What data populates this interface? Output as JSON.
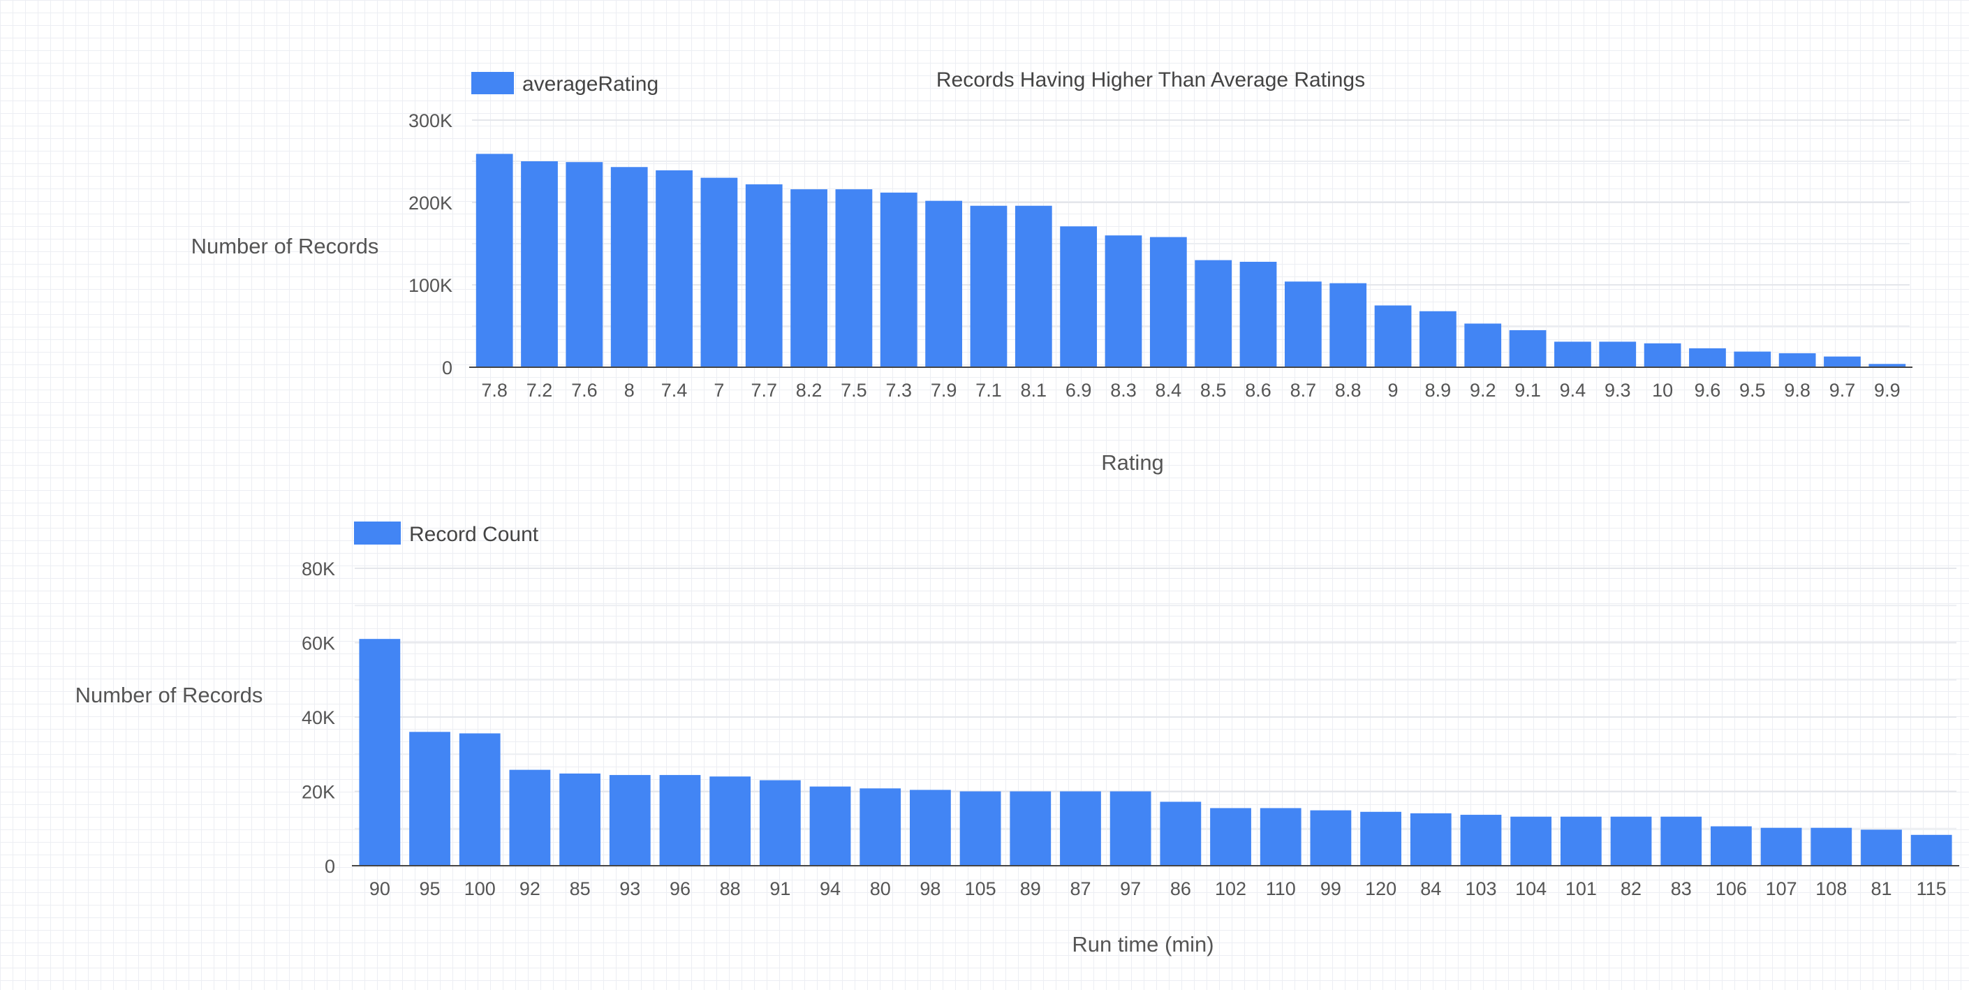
{
  "chart_data": [
    {
      "type": "bar",
      "title": "Records Having Higher Than Average Ratings",
      "xlabel": "Rating",
      "ylabel": "Number of Records",
      "legend": [
        "averageRating"
      ],
      "legend_position": "top-left",
      "grid": true,
      "ylim": [
        0,
        300000
      ],
      "yticks": [
        0,
        100000,
        200000,
        300000
      ],
      "ytick_labels": [
        "0",
        "100K",
        "200K",
        "300K"
      ],
      "categories": [
        "7.8",
        "7.2",
        "7.6",
        "8",
        "7.4",
        "7",
        "7.7",
        "8.2",
        "7.5",
        "7.3",
        "7.9",
        "7.1",
        "8.1",
        "6.9",
        "8.3",
        "8.4",
        "8.5",
        "8.6",
        "8.7",
        "8.8",
        "9",
        "8.9",
        "9.2",
        "9.1",
        "9.4",
        "9.3",
        "10",
        "9.6",
        "9.5",
        "9.8",
        "9.7",
        "9.9"
      ],
      "series": [
        {
          "name": "averageRating",
          "color": "#4285f4",
          "values": [
            259000,
            250000,
            249000,
            243000,
            239000,
            230000,
            222000,
            216000,
            216000,
            212000,
            202000,
            196000,
            196000,
            171000,
            160000,
            158000,
            130000,
            128000,
            104000,
            102000,
            75000,
            68000,
            53000,
            45000,
            31000,
            31000,
            29000,
            23000,
            19000,
            17000,
            13000,
            4000
          ]
        }
      ]
    },
    {
      "type": "bar",
      "title": "",
      "xlabel": "Run time (min)",
      "ylabel": "Number of Records",
      "legend": [
        "Record Count"
      ],
      "legend_position": "top-left",
      "grid": true,
      "ylim": [
        0,
        80000
      ],
      "yticks": [
        0,
        20000,
        40000,
        60000,
        80000
      ],
      "ytick_labels": [
        "0",
        "20K",
        "40K",
        "60K",
        "80K"
      ],
      "categories": [
        "90",
        "95",
        "100",
        "92",
        "85",
        "93",
        "96",
        "88",
        "91",
        "94",
        "80",
        "98",
        "105",
        "89",
        "87",
        "97",
        "86",
        "102",
        "110",
        "99",
        "120",
        "84",
        "103",
        "104",
        "101",
        "82",
        "83",
        "106",
        "107",
        "108",
        "81",
        "115"
      ],
      "series": [
        {
          "name": "Record Count",
          "color": "#4285f4",
          "values": [
            61000,
            36000,
            35600,
            25800,
            24800,
            24400,
            24400,
            24000,
            23000,
            21300,
            20800,
            20400,
            20000,
            20000,
            20000,
            20000,
            17200,
            15500,
            15500,
            14900,
            14500,
            14100,
            13700,
            13200,
            13200,
            13200,
            13200,
            10600,
            10200,
            10200,
            9700,
            8300
          ]
        }
      ]
    }
  ]
}
